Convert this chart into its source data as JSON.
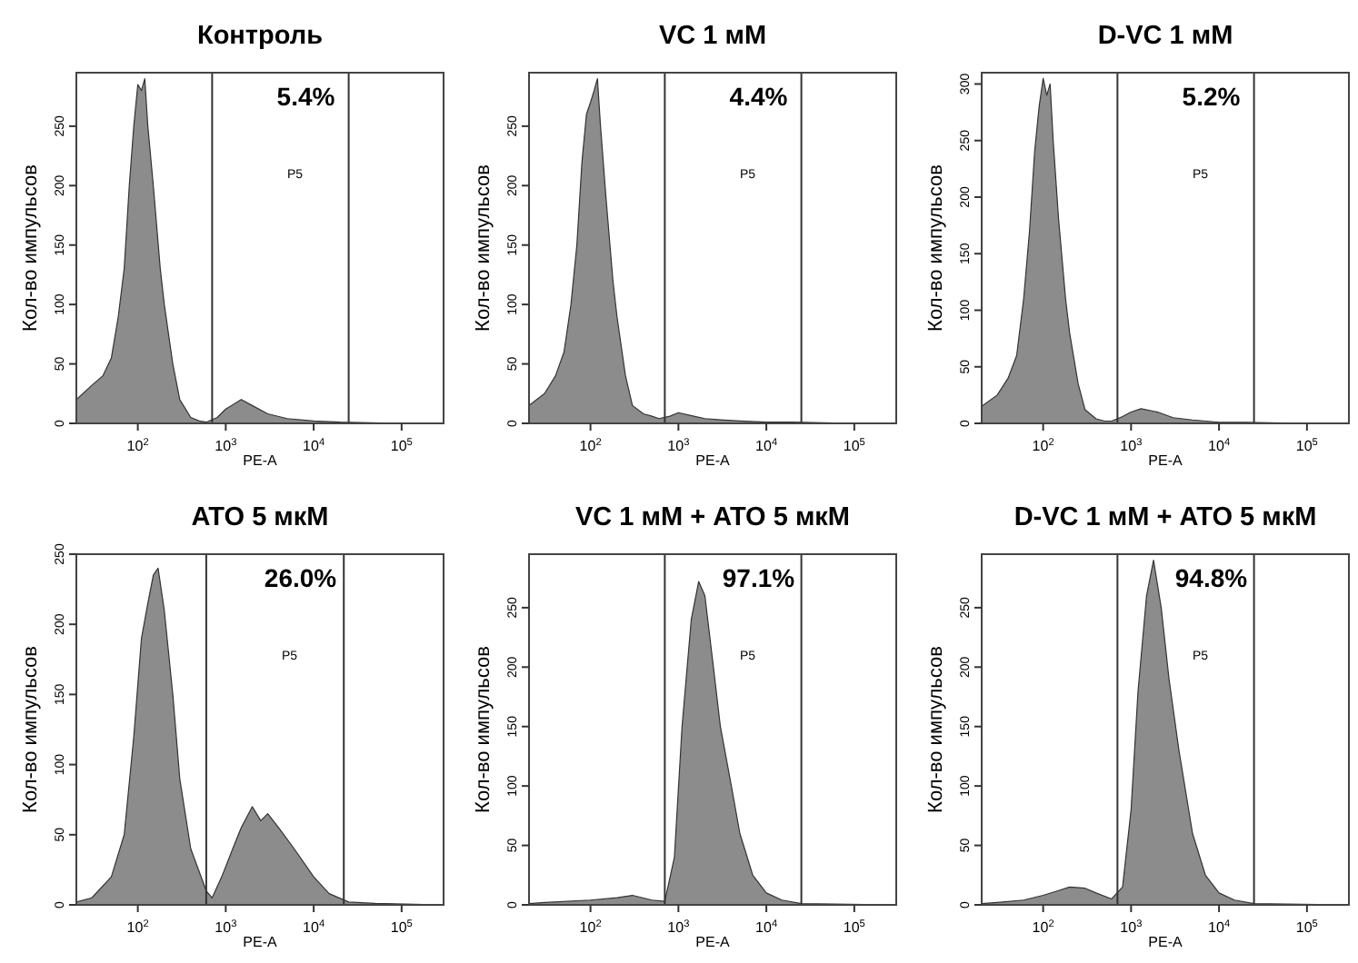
{
  "chart_data": [
    {
      "type": "area",
      "title": "Контроль",
      "xlabel": "PE-A",
      "ylabel": "Кол-во импульсов",
      "log": "x",
      "xlim": [
        20,
        300000
      ],
      "xticks": [
        {
          "value": 100,
          "label": "10$^{2}$"
        },
        {
          "value": 1000,
          "label": "10$^{3}$"
        },
        {
          "value": 10000,
          "label": "10$^{4}$"
        },
        {
          "value": 100000,
          "label": "10$^{5}$"
        }
      ],
      "ylim": [
        0,
        295
      ],
      "yticks": [
        0,
        50,
        100,
        150,
        200,
        250
      ],
      "color": "#8c8c8c",
      "ref_lines": [
        {
          "axis": "x",
          "value": 700
        },
        {
          "axis": "x",
          "value": 25000
        }
      ],
      "annotations": [
        "5.4%",
        "P5"
      ],
      "x": [
        20,
        30,
        40,
        50,
        60,
        70,
        80,
        90,
        100,
        110,
        120,
        130,
        150,
        180,
        200,
        250,
        300,
        400,
        500,
        600,
        800,
        1000,
        1500,
        2000,
        3000,
        5000,
        10000,
        20000,
        100000,
        300000
      ],
      "values": [
        20,
        32,
        40,
        55,
        90,
        130,
        200,
        250,
        285,
        280,
        290,
        250,
        200,
        130,
        100,
        50,
        20,
        5,
        2,
        1,
        5,
        12,
        20,
        15,
        8,
        4,
        2,
        1,
        0,
        0
      ]
    },
    {
      "type": "area",
      "title": "VC 1 мМ",
      "xlabel": "PE-A",
      "ylabel": "Кол-во импульсов",
      "log": "x",
      "xlim": [
        20,
        300000
      ],
      "xticks": [
        {
          "value": 100,
          "label": "10$^{2}$"
        },
        {
          "value": 1000,
          "label": "10$^{3}$"
        },
        {
          "value": 10000,
          "label": "10$^{4}$"
        },
        {
          "value": 100000,
          "label": "10$^{5}$"
        }
      ],
      "ylim": [
        0,
        295
      ],
      "yticks": [
        0,
        50,
        100,
        150,
        200,
        250
      ],
      "color": "#8c8c8c",
      "ref_lines": [
        {
          "axis": "x",
          "value": 700
        },
        {
          "axis": "x",
          "value": 25000
        }
      ],
      "annotations": [
        "4.4%",
        "P5"
      ],
      "x": [
        20,
        30,
        40,
        50,
        60,
        70,
        80,
        90,
        100,
        110,
        120,
        130,
        150,
        180,
        200,
        250,
        300,
        400,
        500,
        600,
        800,
        1000,
        1500,
        2000,
        3000,
        5000,
        10000,
        20000,
        100000,
        300000
      ],
      "values": [
        15,
        25,
        40,
        60,
        100,
        150,
        220,
        260,
        270,
        280,
        290,
        250,
        190,
        120,
        90,
        40,
        15,
        8,
        6,
        4,
        6,
        9,
        6,
        4,
        3,
        2,
        1,
        1,
        0,
        0
      ]
    },
    {
      "type": "area",
      "title": "D-VC 1 мМ",
      "xlabel": "PE-A",
      "ylabel": "Кол-во импульсов",
      "log": "x",
      "xlim": [
        20,
        300000
      ],
      "xticks": [
        {
          "value": 100,
          "label": "10$^{2}$"
        },
        {
          "value": 1000,
          "label": "10$^{3}$"
        },
        {
          "value": 10000,
          "label": "10$^{4}$"
        },
        {
          "value": 100000,
          "label": "10$^{5}$"
        }
      ],
      "ylim": [
        0,
        310
      ],
      "yticks": [
        0,
        50,
        100,
        150,
        200,
        250,
        300
      ],
      "color": "#8c8c8c",
      "ref_lines": [
        {
          "axis": "x",
          "value": 700
        },
        {
          "axis": "x",
          "value": 25000
        }
      ],
      "annotations": [
        "5.2%",
        "P5"
      ],
      "x": [
        20,
        30,
        40,
        50,
        60,
        70,
        80,
        90,
        100,
        110,
        120,
        130,
        150,
        180,
        200,
        250,
        300,
        400,
        500,
        600,
        800,
        1000,
        1300,
        2000,
        3000,
        5000,
        10000,
        20000,
        100000,
        300000
      ],
      "values": [
        15,
        25,
        40,
        60,
        110,
        170,
        240,
        280,
        305,
        290,
        300,
        250,
        180,
        110,
        80,
        35,
        12,
        4,
        2,
        2,
        6,
        10,
        13,
        10,
        5,
        3,
        1,
        1,
        0,
        0
      ]
    },
    {
      "type": "area",
      "title": "ATO 5 мкМ",
      "xlabel": "PE-A",
      "ylabel": "Кол-во импульсов",
      "log": "x",
      "xlim": [
        20,
        300000
      ],
      "xticks": [
        {
          "value": 100,
          "label": "10$^{2}$"
        },
        {
          "value": 1000,
          "label": "10$^{3}$"
        },
        {
          "value": 10000,
          "label": "10$^{4}$"
        },
        {
          "value": 100000,
          "label": "10$^{5}$"
        }
      ],
      "ylim": [
        0,
        250
      ],
      "yticks": [
        0,
        50,
        100,
        150,
        200,
        250
      ],
      "color": "#8c8c8c",
      "ref_lines": [
        {
          "axis": "x",
          "value": 600
        },
        {
          "axis": "x",
          "value": 22000
        }
      ],
      "annotations": [
        "26.0%",
        "P5"
      ],
      "x": [
        20,
        30,
        50,
        70,
        90,
        110,
        130,
        150,
        170,
        200,
        250,
        300,
        400,
        600,
        700,
        900,
        1200,
        1500,
        2000,
        2500,
        3000,
        4000,
        6000,
        10000,
        15000,
        25000,
        50000,
        300000
      ],
      "values": [
        2,
        5,
        20,
        50,
        120,
        190,
        215,
        235,
        240,
        210,
        150,
        90,
        40,
        10,
        5,
        20,
        40,
        55,
        70,
        60,
        65,
        55,
        40,
        20,
        8,
        2,
        1,
        0
      ]
    },
    {
      "type": "area",
      "title": "VC 1 мМ  + ATO 5 мкМ",
      "xlabel": "PE-A",
      "ylabel": "Кол-во импульсов",
      "log": "x",
      "xlim": [
        20,
        300000
      ],
      "xticks": [
        {
          "value": 100,
          "label": "10$^{2}$"
        },
        {
          "value": 1000,
          "label": "10$^{3}$"
        },
        {
          "value": 10000,
          "label": "10$^{4}$"
        },
        {
          "value": 100000,
          "label": "10$^{5}$"
        }
      ],
      "ylim": [
        0,
        295
      ],
      "yticks": [
        0,
        50,
        100,
        150,
        200,
        250
      ],
      "color": "#8c8c8c",
      "ref_lines": [
        {
          "axis": "x",
          "value": 700
        },
        {
          "axis": "x",
          "value": 25000
        }
      ],
      "annotations": [
        "97.1%",
        "P5"
      ],
      "x": [
        20,
        30,
        100,
        200,
        300,
        500,
        700,
        900,
        1100,
        1400,
        1700,
        2000,
        2500,
        3000,
        4000,
        5000,
        7000,
        10000,
        15000,
        25000,
        300000
      ],
      "values": [
        1,
        2,
        4,
        6,
        8,
        4,
        3,
        40,
        150,
        240,
        272,
        260,
        200,
        150,
        100,
        60,
        25,
        10,
        4,
        1,
        0
      ]
    },
    {
      "type": "area",
      "title": "D-VC 1 мМ  + ATO 5 мкМ",
      "xlabel": "PE-A",
      "ylabel": "Кол-во импульсов",
      "log": "x",
      "xlim": [
        20,
        300000
      ],
      "xticks": [
        {
          "value": 100,
          "label": "10$^{2}$"
        },
        {
          "value": 1000,
          "label": "10$^{3}$"
        },
        {
          "value": 10000,
          "label": "10$^{4}$"
        },
        {
          "value": 100000,
          "label": "10$^{5}$"
        }
      ],
      "ylim": [
        0,
        295
      ],
      "yticks": [
        0,
        50,
        100,
        150,
        200,
        250
      ],
      "color": "#8c8c8c",
      "ref_lines": [
        {
          "axis": "x",
          "value": 700
        },
        {
          "axis": "x",
          "value": 25000
        }
      ],
      "annotations": [
        "94.8%",
        "P5"
      ],
      "x": [
        20,
        30,
        60,
        100,
        150,
        200,
        300,
        400,
        600,
        800,
        1000,
        1200,
        1500,
        1800,
        2200,
        2700,
        3500,
        5000,
        7000,
        10000,
        15000,
        25000,
        300000
      ],
      "values": [
        1,
        2,
        4,
        8,
        12,
        15,
        14,
        10,
        5,
        15,
        80,
        180,
        260,
        290,
        250,
        190,
        130,
        60,
        25,
        10,
        4,
        1,
        0
      ]
    }
  ]
}
